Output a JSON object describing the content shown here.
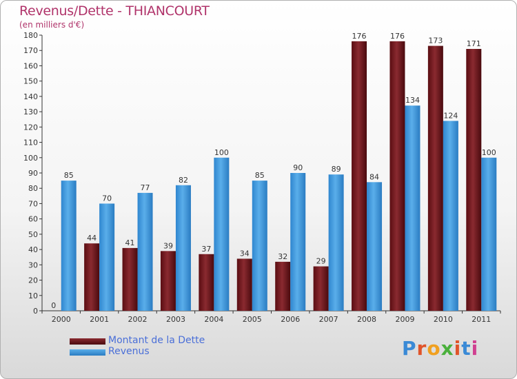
{
  "title": "Revenus/Dette - THIANCOURT",
  "subtitle": "(en milliers d'€)",
  "legend": {
    "debt_label": "Montant de la Dette",
    "revenue_label": "Revenus"
  },
  "logo_text": "Proxiti",
  "colors": {
    "debt": "#7a1a1f",
    "revenue": "#4fa3e3",
    "title": "#b0336a",
    "legend_text": "#4a6fd8"
  },
  "chart_data": {
    "type": "bar",
    "categories": [
      "2000",
      "2001",
      "2002",
      "2003",
      "2004",
      "2005",
      "2006",
      "2007",
      "2008",
      "2009",
      "2010",
      "2011"
    ],
    "series": [
      {
        "name": "Montant de la Dette",
        "values": [
          0,
          44,
          41,
          39,
          37,
          34,
          32,
          29,
          176,
          176,
          173,
          171
        ]
      },
      {
        "name": "Revenus",
        "values": [
          85,
          70,
          77,
          82,
          100,
          85,
          90,
          89,
          84,
          134,
          124,
          100
        ]
      }
    ],
    "ylim": [
      0,
      180
    ],
    "yticks": [
      0,
      10,
      20,
      30,
      40,
      50,
      60,
      70,
      80,
      90,
      100,
      110,
      120,
      130,
      140,
      150,
      160,
      170,
      180
    ],
    "grid": false,
    "legend_position": "bottom-left"
  }
}
